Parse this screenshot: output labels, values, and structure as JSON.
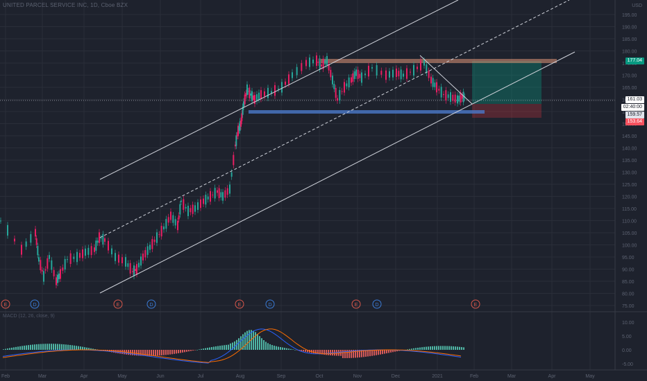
{
  "symbol_header": "UNITED PARCEL SERVICE INC, 1D, Cboe BZX",
  "currency": "USD",
  "macd_label": "MACD (12, 26, close, 9)",
  "price_scale": [
    "195.00",
    "190.00",
    "185.00",
    "180.00",
    "175.00",
    "170.00",
    "165.00",
    "160.00",
    "155.00",
    "150.00",
    "145.00",
    "140.00",
    "135.00",
    "130.00",
    "125.00",
    "120.00",
    "115.00",
    "110.00",
    "105.00",
    "100.00",
    "95.00",
    "90.00",
    "85.00",
    "80.00",
    "75.00"
  ],
  "macd_scale": [
    "10.00",
    "5.00",
    "0.00",
    "-5.00"
  ],
  "time_axis": [
    "Feb",
    "Mar",
    "Apr",
    "May",
    "Jun",
    "Jul",
    "Aug",
    "Sep",
    "Oct",
    "Nov",
    "Dec",
    "2021",
    "Feb",
    "Mar",
    "Apr",
    "May"
  ],
  "price_tags": {
    "target": "177.04",
    "last": "161.03",
    "countdown": "02:40:00",
    "entry": "159.57",
    "stop": "153.64"
  },
  "events": [
    {
      "type": "E",
      "label": "E"
    },
    {
      "type": "D",
      "label": "D"
    },
    {
      "type": "E",
      "label": "E"
    },
    {
      "type": "D",
      "label": "D"
    },
    {
      "type": "E",
      "label": "E"
    },
    {
      "type": "D",
      "label": "D"
    },
    {
      "type": "E",
      "label": "E"
    },
    {
      "type": "D",
      "label": "D"
    },
    {
      "type": "E",
      "label": "E"
    }
  ],
  "colors": {
    "background": "#1e222d",
    "up": "#26a69a",
    "down": "#ef5350",
    "grid": "#2a2e39",
    "text": "#787b86"
  }
}
